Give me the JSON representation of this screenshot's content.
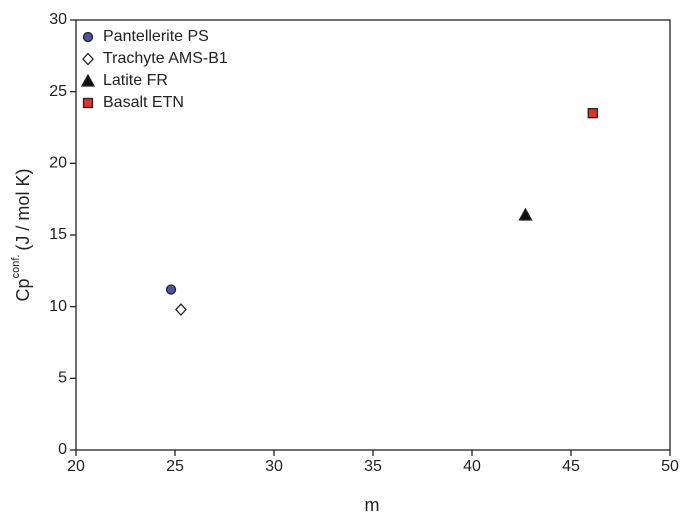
{
  "chart_data": {
    "type": "scatter",
    "xlabel": "m",
    "ylabel": {
      "main": "Cp",
      "sup": "conf.",
      "unit": "(J / mol K)"
    },
    "xlim": [
      20,
      50
    ],
    "xticks": [
      20,
      25,
      30,
      35,
      40,
      45,
      50
    ],
    "ylim": [
      0,
      30
    ],
    "yticks": [
      0,
      5,
      10,
      15,
      20,
      25,
      30
    ],
    "grid": false,
    "legend": "upper left",
    "series": [
      {
        "name": "Pantellerite PS",
        "color": "#4b53a3",
        "marker": "circle",
        "x": [
          24.8
        ],
        "values": [
          11.2
        ]
      },
      {
        "name": "Trachyte AMS-B1",
        "color": "#ffffff",
        "marker": "diamond",
        "x": [
          25.3
        ],
        "values": [
          9.8
        ]
      },
      {
        "name": "Latite FR",
        "color": "#111111",
        "marker": "triangle",
        "x": [
          42.7
        ],
        "values": [
          16.4
        ]
      },
      {
        "name": "Basalt ETN",
        "color": "#e0332a",
        "marker": "square",
        "x": [
          46.1
        ],
        "values": [
          23.5
        ]
      }
    ]
  }
}
